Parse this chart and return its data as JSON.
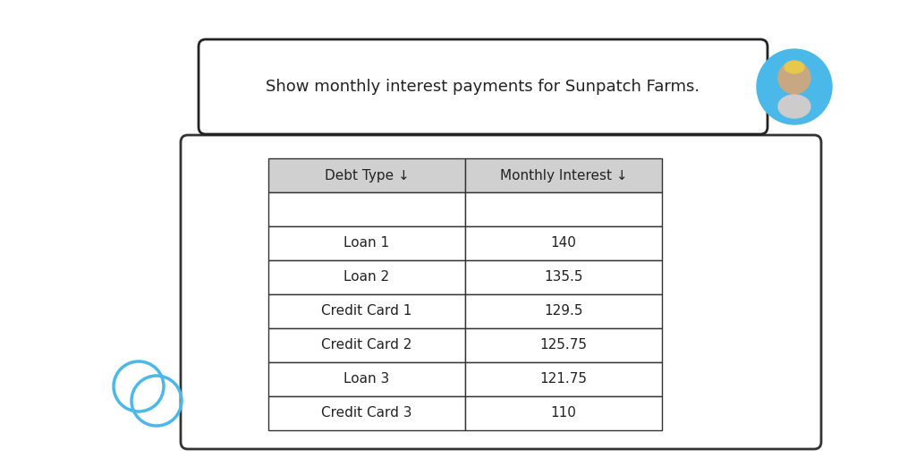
{
  "query_text": "Show monthly interest payments for Sunpatch Farms.",
  "col_headers": [
    "Debt Type ↓",
    "Monthly Interest ↓"
  ],
  "empty_row": [
    "",
    ""
  ],
  "rows": [
    [
      "Loan 1",
      "140"
    ],
    [
      "Loan 2",
      "135.5"
    ],
    [
      "Credit Card 1",
      "129.5"
    ],
    [
      "Credit Card 2",
      "125.75"
    ],
    [
      "Loan 3",
      "121.75"
    ],
    [
      "Credit Card 3",
      "110"
    ]
  ],
  "background_color": "#ffffff",
  "table_bg": "#ffffff",
  "header_bg": "#d0d0d0",
  "border_color": "#333333",
  "text_color": "#222222",
  "bubble_border": "#222222",
  "chat_icon_color": "#4ab8e8",
  "avatar_hair": "#e8c84a",
  "avatar_skin": "#c8a882",
  "avatar_bg": "#4ab8e8"
}
